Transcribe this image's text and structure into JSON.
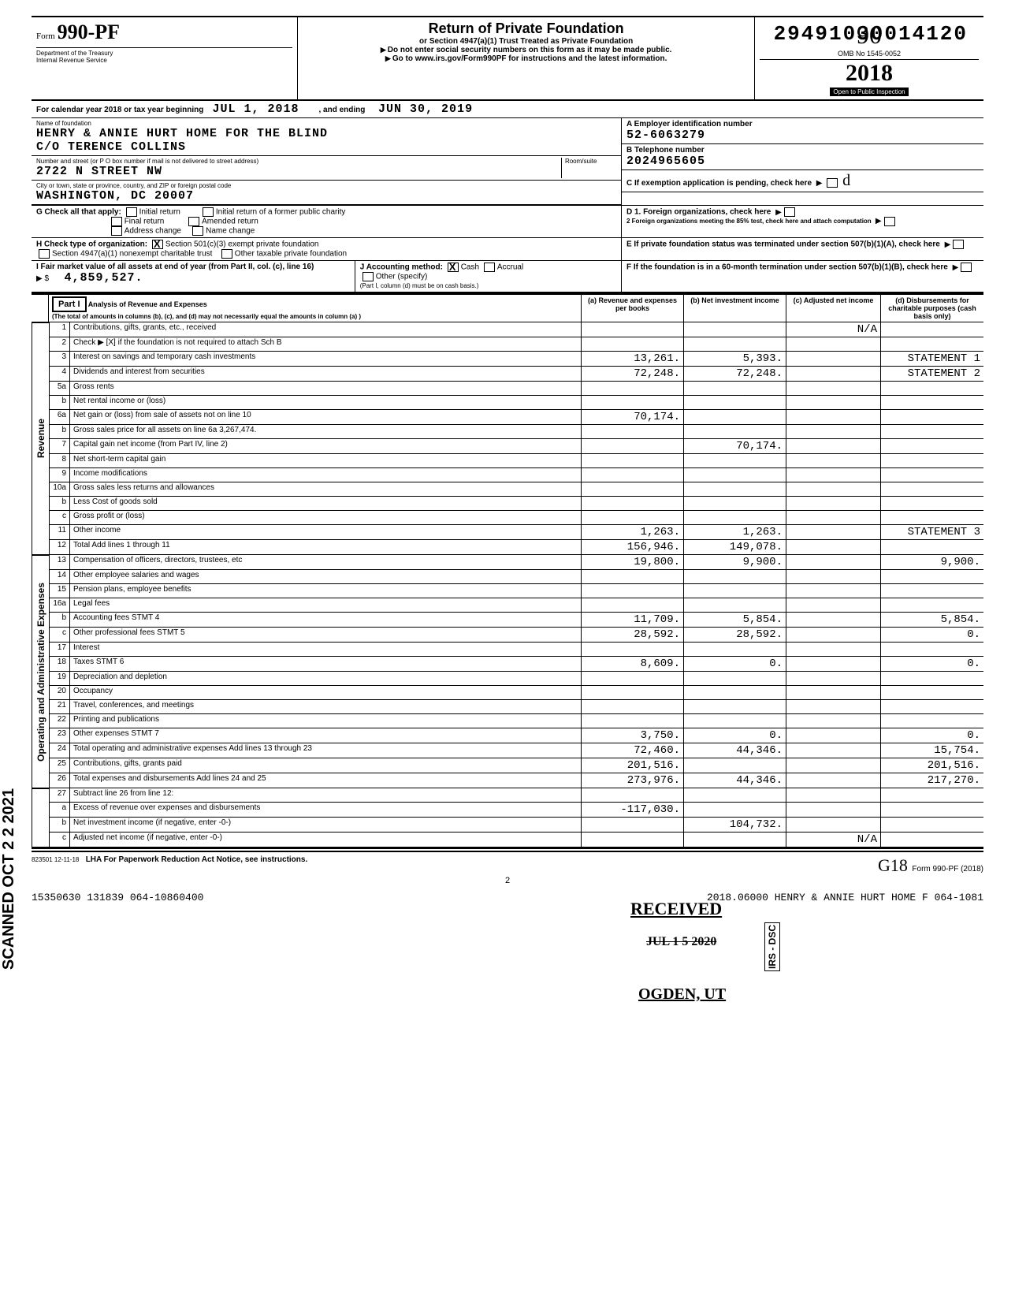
{
  "dln": "29491030014120",
  "form": {
    "prefix": "Form",
    "number": "990-PF",
    "dept1": "Department of the Treasury",
    "dept2": "Internal Revenue Service"
  },
  "header": {
    "title": "Return of Private Foundation",
    "sub1": "or Section 4947(a)(1) Trust Treated as Private Foundation",
    "sub2": "Do not enter social security numbers on this form as it may be made public.",
    "sub3": "Go to www.irs.gov/Form990PF for instructions and the latest information."
  },
  "omb": "OMB No  1545-0052",
  "year": "2018",
  "inspection": "Open to Public Inspection",
  "calendar": {
    "label": "For calendar year 2018 or tax year beginning",
    "begin": "JUL 1, 2018",
    "mid": ", and ending",
    "end": "JUN 30, 2019"
  },
  "name_label": "Name of foundation",
  "name1": "HENRY & ANNIE HURT HOME FOR THE BLIND",
  "name2": "C/O TERENCE COLLINS",
  "addr_label": "Number and street (or P O  box number if mail is not delivered to street address)",
  "room_label": "Room/suite",
  "street": "2722 N STREET NW",
  "city_label": "City or town, state or province, country, and ZIP or foreign postal code",
  "city": "WASHINGTON, DC   20007",
  "ein_label": "A  Employer identification number",
  "ein": "52-6063279",
  "phone_label": "B  Telephone number",
  "phone": "2024965605",
  "c_label": "C  If exemption application is pending, check here",
  "g_label": "G   Check all that apply:",
  "g_opts": [
    "Initial return",
    "Final return",
    "Address change",
    "Initial return of a former public charity",
    "Amended return",
    "Name change"
  ],
  "d1": "D  1. Foreign organizations, check here",
  "d2": "2   Foreign organizations meeting the 85% test, check here and attach computation",
  "h_label": "H   Check type of organization:",
  "h1": "Section 501(c)(3) exempt private foundation",
  "h2": "Section 4947(a)(1) nonexempt charitable trust",
  "h3": "Other taxable private foundation",
  "e_label": "E   If private foundation status was terminated under section 507(b)(1)(A), check here",
  "i_label": "I    Fair market value of all assets at end of year (from Part II, col. (c), line 16)",
  "i_val": "4,859,527.",
  "i_arrow": "▶ $",
  "j_label": "J   Accounting method:",
  "j_cash": "Cash",
  "j_accrual": "Accrual",
  "j_other": "Other (specify)",
  "j_note": "(Part I, column (d) must be on cash basis.)",
  "f_label": "F   If the foundation is in a 60-month termination under section 507(b)(1)(B), check here",
  "part1": {
    "label": "Part I",
    "title": "Analysis of Revenue and Expenses",
    "sub": "(The total of amounts in columns (b), (c), and (d) may not necessarily equal the amounts in column (a) )",
    "col_a": "(a) Revenue and expenses per books",
    "col_b": "(b) Net investment income",
    "col_c": "(c) Adjusted net income",
    "col_d": "(d) Disbursements for charitable purposes (cash basis only)"
  },
  "rev_label": "Revenue",
  "exp_label": "Operating and Administrative Expenses",
  "rows": [
    {
      "n": "1",
      "d": "Contributions, gifts, grants, etc., received",
      "a": "",
      "b": "",
      "c": "N/A",
      "e": ""
    },
    {
      "n": "2",
      "d": "Check ▶ [X] if the foundation is not required to attach Sch B",
      "a": "",
      "b": "",
      "c": "",
      "e": ""
    },
    {
      "n": "3",
      "d": "Interest on savings and temporary cash investments",
      "a": "13,261.",
      "b": "5,393.",
      "c": "",
      "e": "STATEMENT  1"
    },
    {
      "n": "4",
      "d": "Dividends and interest from securities",
      "a": "72,248.",
      "b": "72,248.",
      "c": "",
      "e": "STATEMENT  2"
    },
    {
      "n": "5a",
      "d": "Gross rents",
      "a": "",
      "b": "",
      "c": "",
      "e": ""
    },
    {
      "n": "b",
      "d": "Net rental income or (loss)",
      "a": "",
      "b": "",
      "c": "",
      "e": ""
    },
    {
      "n": "6a",
      "d": "Net gain or (loss) from sale of assets not on line 10",
      "a": "70,174.",
      "b": "",
      "c": "",
      "e": ""
    },
    {
      "n": "b",
      "d": "Gross sales price for all assets on line 6a        3,267,474.",
      "a": "",
      "b": "",
      "c": "",
      "e": ""
    },
    {
      "n": "7",
      "d": "Capital gain net income (from Part IV, line 2)",
      "a": "",
      "b": "70,174.",
      "c": "",
      "e": ""
    },
    {
      "n": "8",
      "d": "Net short-term capital gain",
      "a": "",
      "b": "",
      "c": "",
      "e": ""
    },
    {
      "n": "9",
      "d": "Income modifications",
      "a": "",
      "b": "",
      "c": "",
      "e": ""
    },
    {
      "n": "10a",
      "d": "Gross sales less returns and allowances",
      "a": "",
      "b": "",
      "c": "",
      "e": ""
    },
    {
      "n": "b",
      "d": "Less  Cost of goods sold",
      "a": "",
      "b": "",
      "c": "",
      "e": ""
    },
    {
      "n": "c",
      "d": "Gross profit or (loss)",
      "a": "",
      "b": "",
      "c": "",
      "e": ""
    },
    {
      "n": "11",
      "d": "Other income",
      "a": "1,263.",
      "b": "1,263.",
      "c": "",
      "e": "STATEMENT  3"
    },
    {
      "n": "12",
      "d": "Total  Add lines 1 through 11",
      "a": "156,946.",
      "b": "149,078.",
      "c": "",
      "e": ""
    }
  ],
  "rows2": [
    {
      "n": "13",
      "d": "Compensation of officers, directors, trustees, etc",
      "a": "19,800.",
      "b": "9,900.",
      "c": "",
      "e": "9,900."
    },
    {
      "n": "14",
      "d": "Other employee salaries and wages",
      "a": "",
      "b": "",
      "c": "",
      "e": ""
    },
    {
      "n": "15",
      "d": "Pension plans, employee benefits",
      "a": "",
      "b": "",
      "c": "",
      "e": ""
    },
    {
      "n": "16a",
      "d": "Legal fees",
      "a": "",
      "b": "",
      "c": "",
      "e": ""
    },
    {
      "n": "b",
      "d": "Accounting fees                    STMT  4",
      "a": "11,709.",
      "b": "5,854.",
      "c": "",
      "e": "5,854."
    },
    {
      "n": "c",
      "d": "Other professional fees            STMT  5",
      "a": "28,592.",
      "b": "28,592.",
      "c": "",
      "e": "0."
    },
    {
      "n": "17",
      "d": "Interest",
      "a": "",
      "b": "",
      "c": "",
      "e": ""
    },
    {
      "n": "18",
      "d": "Taxes                              STMT  6",
      "a": "8,609.",
      "b": "0.",
      "c": "",
      "e": "0."
    },
    {
      "n": "19",
      "d": "Depreciation and depletion",
      "a": "",
      "b": "",
      "c": "",
      "e": ""
    },
    {
      "n": "20",
      "d": "Occupancy",
      "a": "",
      "b": "",
      "c": "",
      "e": ""
    },
    {
      "n": "21",
      "d": "Travel, conferences, and meetings",
      "a": "",
      "b": "",
      "c": "",
      "e": ""
    },
    {
      "n": "22",
      "d": "Printing and publications",
      "a": "",
      "b": "",
      "c": "",
      "e": ""
    },
    {
      "n": "23",
      "d": "Other expenses                     STMT  7",
      "a": "3,750.",
      "b": "0.",
      "c": "",
      "e": "0."
    },
    {
      "n": "24",
      "d": "Total operating and administrative expenses  Add lines 13 through 23",
      "a": "72,460.",
      "b": "44,346.",
      "c": "",
      "e": "15,754."
    },
    {
      "n": "25",
      "d": "Contributions, gifts, grants paid",
      "a": "201,516.",
      "b": "",
      "c": "",
      "e": "201,516."
    },
    {
      "n": "26",
      "d": "Total expenses and disbursements Add lines 24 and 25",
      "a": "273,976.",
      "b": "44,346.",
      "c": "",
      "e": "217,270."
    }
  ],
  "rows3": [
    {
      "n": "27",
      "d": "Subtract line 26 from line 12:",
      "a": "",
      "b": "",
      "c": "",
      "e": ""
    },
    {
      "n": "a",
      "d": "Excess of revenue over expenses and disbursements",
      "a": "-117,030.",
      "b": "",
      "c": "",
      "e": ""
    },
    {
      "n": "b",
      "d": "Net investment income (if negative, enter -0-)",
      "a": "",
      "b": "104,732.",
      "c": "",
      "e": ""
    },
    {
      "n": "c",
      "d": "Adjusted net income (if negative, enter -0-)",
      "a": "",
      "b": "",
      "c": "N/A",
      "e": ""
    }
  ],
  "footer": {
    "code": "823501  12-11-18",
    "lha": "LHA   For Paperwork Reduction Act Notice, see instructions.",
    "form_ref": "Form 990-PF (2018)",
    "gk": "G18",
    "page": "2"
  },
  "bottom": {
    "left": "15350630 131839 064-10860400",
    "right": "2018.06000 HENRY & ANNIE HURT HOME F 064-1081"
  },
  "scanned": "SCANNED OCT 2 2 2021",
  "stamp": {
    "received": "RECEIVED",
    "date": "JUL 1 5 2020",
    "ogden": "OGDEN, UT",
    "irs": "IRS - DSC"
  }
}
